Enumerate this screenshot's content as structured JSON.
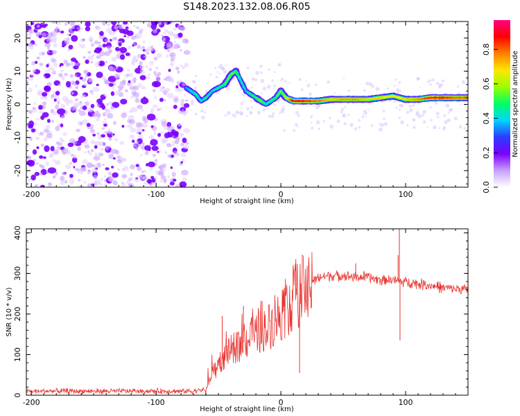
{
  "chart_data": [
    {
      "type": "heatmap",
      "title": "S148.2023.132.08.06.R05",
      "xlabel": "Height of straight line (km)",
      "ylabel": "Frequency (Hz)",
      "xlim": [
        -204,
        150
      ],
      "ylim": [
        -25,
        25
      ],
      "xticks": [
        -200,
        -100,
        0,
        100
      ],
      "yticks": [
        -20,
        -10,
        0,
        10,
        20
      ],
      "colorbar": {
        "label": "Normalized spectral amplitude",
        "range": [
          0.0,
          0.97
        ],
        "ticks": [
          0.0,
          0.2,
          0.4,
          0.6,
          0.8
        ],
        "stops": [
          "#ffffff",
          "#c8a0ff",
          "#7a00ff",
          "#2a3cff",
          "#00d4ff",
          "#00ff66",
          "#99ff00",
          "#ffe600",
          "#ff8000",
          "#ff0000",
          "#ff007f"
        ]
      },
      "noise_region": {
        "x": [
          -204,
          -75
        ],
        "y": [
          -25,
          25
        ]
      },
      "ridge": {
        "x": [
          -76,
          -72,
          -68,
          -64,
          -60,
          -55,
          -50,
          -45,
          -40,
          -36,
          -32,
          -28,
          -24,
          -20,
          -16,
          -12,
          -8,
          -4,
          0,
          4,
          10,
          20,
          30,
          40,
          50,
          60,
          70,
          80,
          90,
          100,
          110,
          120,
          130,
          140,
          150
        ],
        "y": [
          5,
          4,
          3,
          1,
          2,
          4,
          5,
          6,
          9,
          10,
          7,
          4,
          3,
          2,
          1,
          0,
          1,
          2,
          4,
          2,
          1,
          1,
          1,
          1.5,
          1.5,
          1.5,
          1.5,
          2,
          2.5,
          1.5,
          1.5,
          2,
          2,
          2,
          2
        ],
        "amplitude": [
          0.35,
          0.4,
          0.45,
          0.4,
          0.45,
          0.4,
          0.45,
          0.5,
          0.55,
          0.5,
          0.45,
          0.4,
          0.45,
          0.5,
          0.55,
          0.45,
          0.45,
          0.5,
          0.55,
          0.6,
          0.9,
          0.85,
          0.8,
          0.7,
          0.75,
          0.75,
          0.7,
          0.7,
          0.65,
          0.7,
          0.75,
          0.85,
          0.85,
          0.8,
          0.8
        ]
      }
    },
    {
      "type": "line",
      "xlabel": "Height of straight line (km)",
      "ylabel": "SNR (10 * v/v)",
      "xlim": [
        -204,
        150
      ],
      "ylim": [
        0,
        410
      ],
      "xticks": [
        -200,
        -100,
        0,
        100
      ],
      "yticks": [
        0,
        100,
        200,
        300,
        400
      ],
      "series": [
        {
          "name": "SNR",
          "color": "#e8322d",
          "x": [
            -204,
            -180,
            -160,
            -140,
            -120,
            -100,
            -90,
            -80,
            -70,
            -65,
            -60,
            -58,
            -55,
            -50,
            -45,
            -40,
            -35,
            -30,
            -25,
            -20,
            -15,
            -10,
            -5,
            0,
            5,
            10,
            15,
            20,
            25,
            30,
            40,
            50,
            60,
            70,
            80,
            90,
            95,
            100,
            110,
            120,
            130,
            140,
            150
          ],
          "y": [
            10,
            10,
            10,
            10,
            10,
            10,
            10,
            10,
            10,
            12,
            15,
            30,
            50,
            80,
            95,
            110,
            120,
            130,
            140,
            150,
            160,
            170,
            180,
            200,
            215,
            240,
            250,
            265,
            280,
            290,
            295,
            295,
            292,
            290,
            285,
            285,
            280,
            280,
            275,
            270,
            265,
            262,
            260
          ],
          "spikes": [
            {
              "x": -57,
              "y": 35
            },
            {
              "x": -47,
              "y": 195
            },
            {
              "x": -30,
              "y": 220
            },
            {
              "x": -15,
              "y": 232
            },
            {
              "x": 2,
              "y": 260
            },
            {
              "x": 12,
              "y": 335
            },
            {
              "x": 15,
              "y": 55
            },
            {
              "x": 60,
              "y": 325
            },
            {
              "x": 94,
              "y": 345
            },
            {
              "x": 95,
              "y": 410
            },
            {
              "x": 95.5,
              "y": 135
            }
          ]
        }
      ]
    }
  ]
}
